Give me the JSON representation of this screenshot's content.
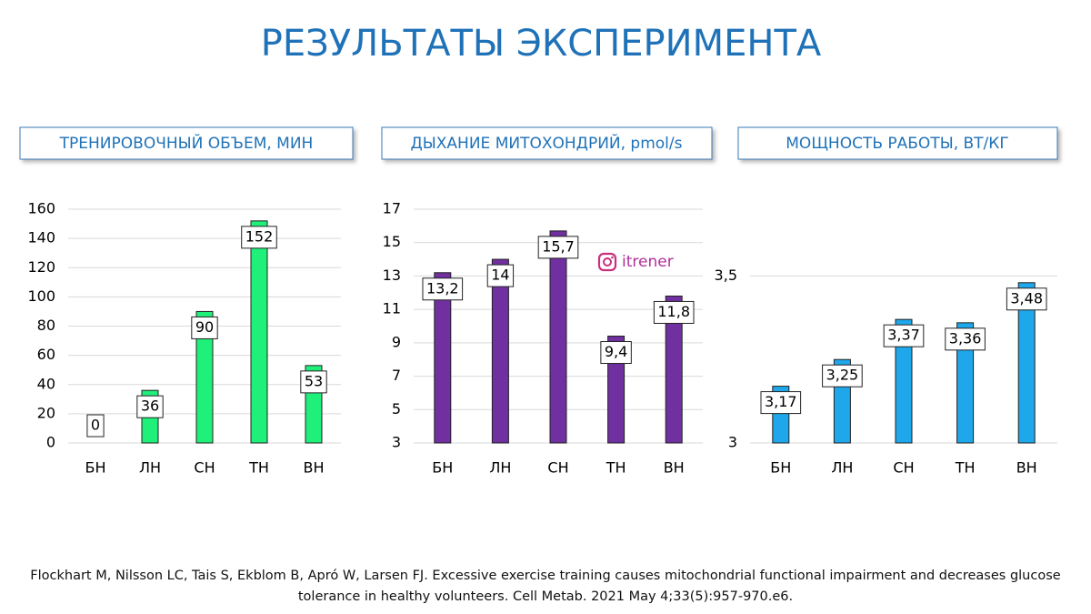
{
  "title": "РЕЗУЛЬТАТЫ ЭКСПЕРИМЕНТА",
  "watermark": "itrener",
  "citation": "Flockhart M, Nilsson LC, Tais S, Ekblom B, Apró W, Larsen FJ. Excessive exercise training causes mitochondrial functional impairment and decreases glucose tolerance in healthy volunteers. Cell Metab. 2021 May 4;33(5):957-970.e6.",
  "chart_data": [
    {
      "type": "bar",
      "title": "ТРЕНИРОВОЧНЫЙ ОБЪЕМ, МИН",
      "categories": [
        "БН",
        "ЛН",
        "СН",
        "ТН",
        "ВН"
      ],
      "values": [
        0,
        36,
        90,
        152,
        53
      ],
      "color": "#1ef07a",
      "ylim": [
        0,
        160
      ],
      "yticks": [
        0,
        20,
        40,
        60,
        80,
        100,
        120,
        140,
        160
      ],
      "grid": true
    },
    {
      "type": "bar",
      "title": "ДЫХАНИЕ МИТОХОНДРИЙ, pmol/s",
      "categories": [
        "БН",
        "ЛН",
        "СН",
        "ТН",
        "ВН"
      ],
      "values": [
        13.2,
        14,
        15.7,
        9.4,
        11.8
      ],
      "value_labels": [
        "13,2",
        "14",
        "15,7",
        "9,4",
        "11,8"
      ],
      "color": "#7030a0",
      "ylim": [
        3,
        17
      ],
      "yticks": [
        3,
        5,
        7,
        9,
        11,
        13,
        15,
        17
      ],
      "grid": true
    },
    {
      "type": "bar",
      "title": "МОЩНОСТЬ РАБОТЫ, ВТ/КГ",
      "categories": [
        "БН",
        "ЛН",
        "СН",
        "ТН",
        "ВН"
      ],
      "values": [
        3.17,
        3.25,
        3.37,
        3.36,
        3.48
      ],
      "value_labels": [
        "3,17",
        "3,25",
        "3,37",
        "3,36",
        "3,48"
      ],
      "color": "#1ea7ea",
      "ylim": [
        3,
        3.7
      ],
      "yticks": [
        3,
        {
          "value": 3.5,
          "label": "3,5"
        }
      ],
      "grid": true
    }
  ]
}
